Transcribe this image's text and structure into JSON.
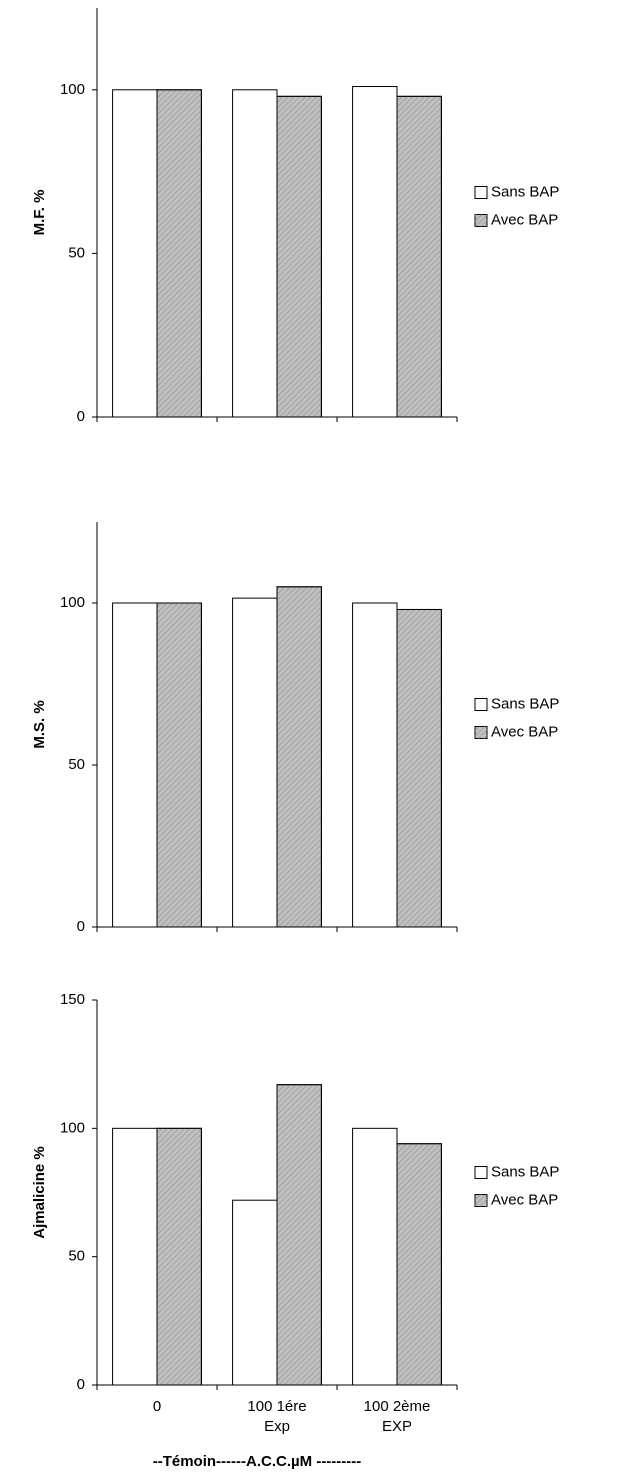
{
  "chart_data": [
    {
      "type": "bar",
      "y_label": "M.F. %",
      "categories": [
        null,
        null,
        null
      ],
      "series": [
        {
          "name": "Sans BAP",
          "color": "#ffffff",
          "values": [
            100,
            100,
            101
          ]
        },
        {
          "name": "Avec BAP",
          "color": "#c0c0c0",
          "values": [
            100,
            98,
            98
          ]
        }
      ],
      "ylim": [
        0,
        125
      ],
      "yticks": [
        0,
        50,
        100
      ],
      "legend": "right"
    },
    {
      "type": "bar",
      "y_label": "M.S. %",
      "categories": [
        null,
        null,
        null
      ],
      "series": [
        {
          "name": "Sans BAP",
          "color": "#ffffff",
          "values": [
            100,
            101.5,
            100
          ]
        },
        {
          "name": "Avec BAP",
          "color": "#c0c0c0",
          "values": [
            100,
            105,
            98
          ]
        }
      ],
      "ylim": [
        0,
        125
      ],
      "yticks": [
        0,
        50,
        100
      ],
      "legend": "right"
    },
    {
      "type": "bar",
      "y_label": "Ajmalicine %",
      "x_label": "--Témoin------A.C.C.µM ---------",
      "categories": [
        "0",
        "100 1ére Exp",
        "100 2ème EXP"
      ],
      "series": [
        {
          "name": "Sans BAP",
          "color": "#ffffff",
          "values": [
            100,
            72,
            100
          ]
        },
        {
          "name": "Avec BAP",
          "color": "#c0c0c0",
          "values": [
            100,
            117,
            94
          ]
        }
      ],
      "ylim": [
        0,
        150
      ],
      "yticks": [
        0,
        50,
        100,
        150
      ],
      "legend": "right"
    }
  ]
}
